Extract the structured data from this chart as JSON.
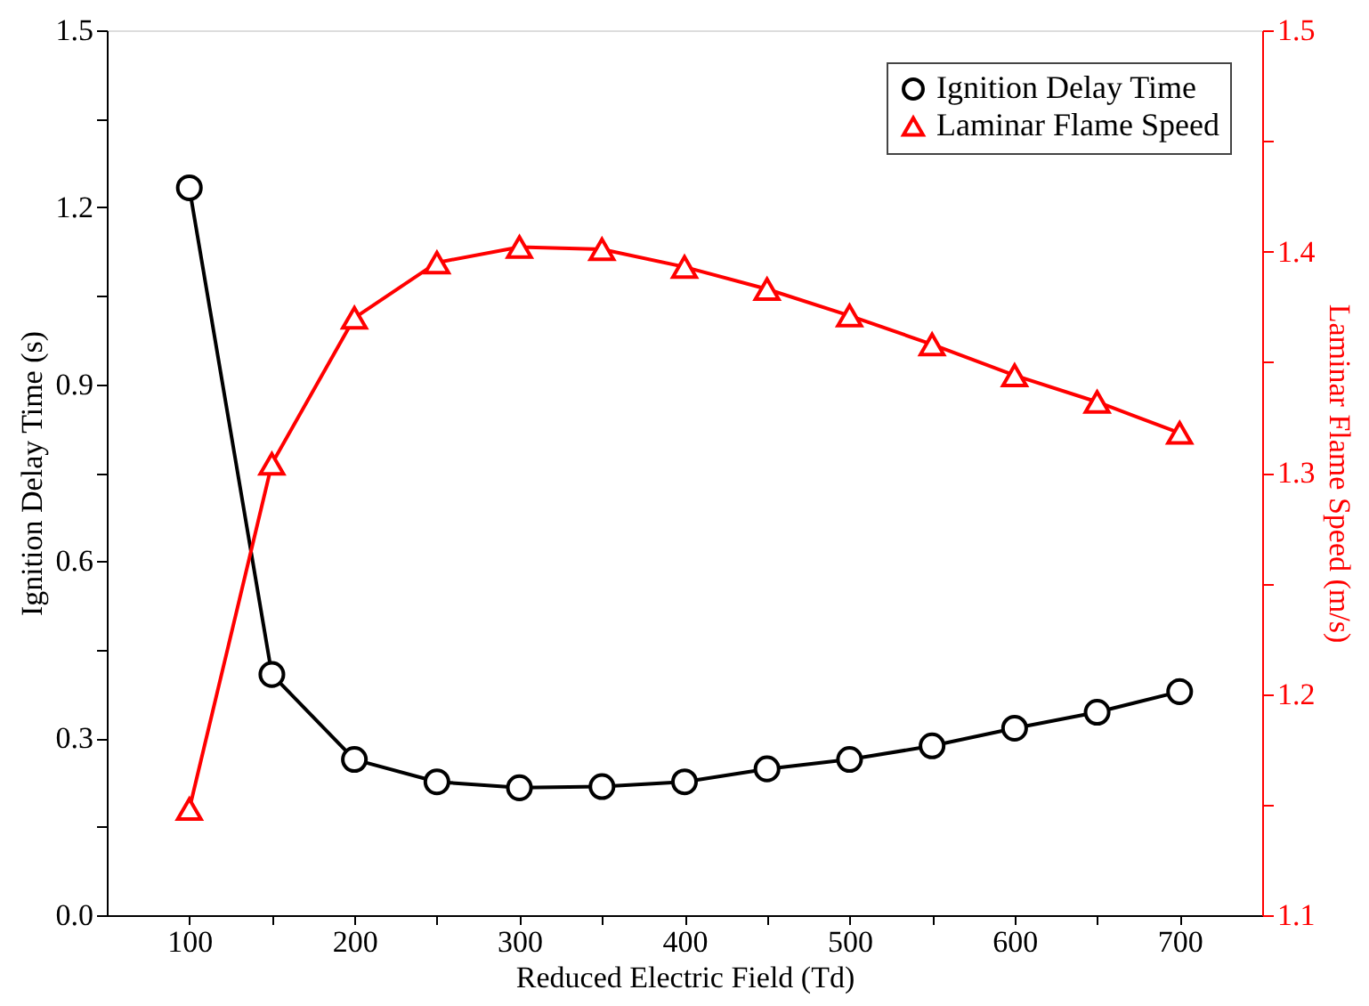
{
  "chart_data": {
    "type": "line",
    "xlabel": "Reduced Electric Field (Td)",
    "ylabel": "Ignition Delay Time (s)",
    "y2label": "Laminar Flame Speed (m/s)",
    "x": [
      100,
      150,
      200,
      250,
      300,
      350,
      400,
      450,
      500,
      550,
      600,
      650,
      700
    ],
    "series": [
      {
        "name": "Ignition Delay Time",
        "color": "#000000",
        "marker": "circle",
        "values": [
          1.233,
          0.408,
          0.264,
          0.226,
          0.216,
          0.218,
          0.226,
          0.248,
          0.264,
          0.287,
          0.317,
          0.344,
          0.379
        ]
      },
      {
        "name": "Laminar Flame Speed",
        "color": "#ff0000",
        "marker": "triangle",
        "axis": "y2",
        "values": [
          1.148,
          1.304,
          1.37,
          1.395,
          1.402,
          1.401,
          1.393,
          1.383,
          1.371,
          1.358,
          1.344,
          1.332,
          1.318
        ]
      }
    ],
    "xlim": [
      50,
      750
    ],
    "xticks": [
      100,
      {
        "value": 150,
        "label": null
      },
      200,
      {
        "value": 250,
        "label": null
      },
      300,
      {
        "value": 350,
        "label": null
      },
      400,
      {
        "value": 450,
        "label": null
      },
      500,
      {
        "value": 550,
        "label": null
      },
      600,
      {
        "value": 650,
        "label": null
      },
      700
    ],
    "ylim": [
      0,
      1.5
    ],
    "yticks": [
      {
        "value": 0,
        "label": "0.0"
      },
      {
        "value": 0.15,
        "label": null
      },
      0.3,
      {
        "value": 0.45,
        "label": null
      },
      0.6,
      {
        "value": 0.75,
        "label": null
      },
      0.9,
      {
        "value": 1.05,
        "label": null
      },
      1.2,
      {
        "value": 1.35,
        "label": null
      },
      1.5
    ],
    "y2lim": [
      1.1,
      1.5
    ],
    "y2ticks": [
      1.1,
      {
        "value": 1.15,
        "label": null
      },
      1.2,
      {
        "value": 1.25,
        "label": null
      },
      1.3,
      {
        "value": 1.35,
        "label": null
      },
      1.4,
      {
        "value": 1.45,
        "label": null
      },
      1.5
    ],
    "legend": "top right",
    "grid": false,
    "line_style": "solid"
  }
}
